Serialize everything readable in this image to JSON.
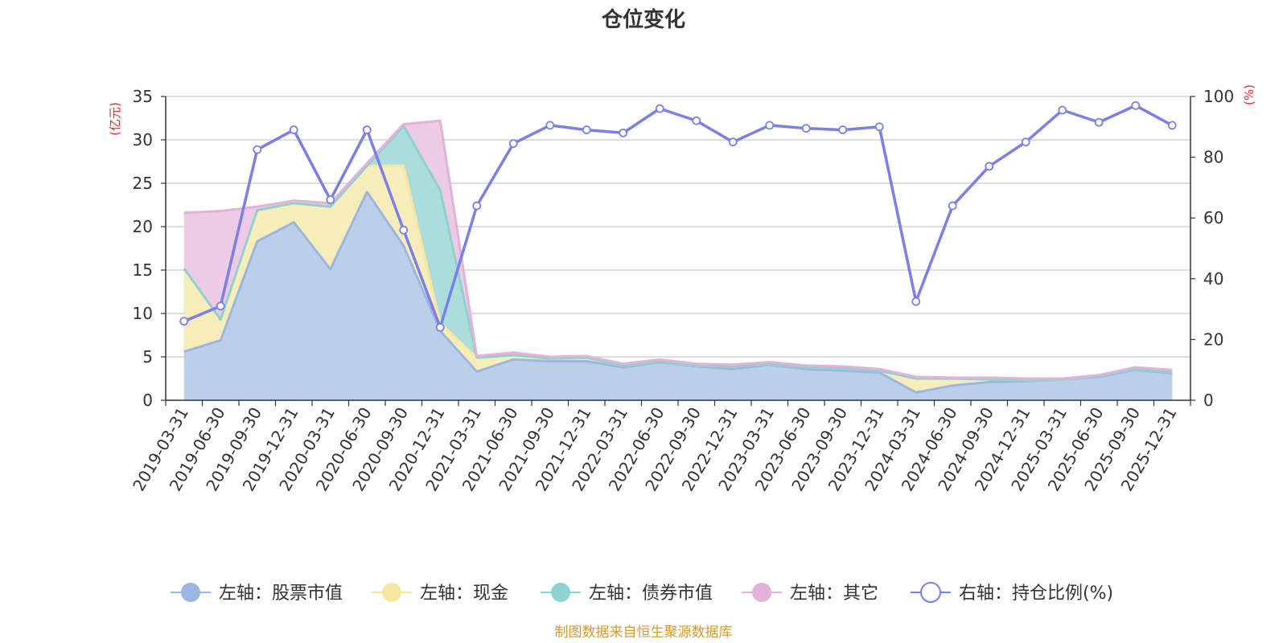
{
  "chart_data": {
    "type": "area",
    "title": "仓位变化",
    "left_unit": "(亿元)",
    "right_unit": "(%)",
    "categories": [
      "2019-03-31",
      "2019-06-30",
      "2019-09-30",
      "2019-12-31",
      "2020-03-31",
      "2020-06-30",
      "2020-09-30",
      "2020-12-31",
      "2021-03-31",
      "2021-06-30",
      "2021-09-30",
      "2021-12-31",
      "2022-03-31",
      "2022-06-30",
      "2022-09-30",
      "2022-12-31",
      "2023-03-31",
      "2023-06-30",
      "2023-09-30",
      "2023-12-31",
      "2024-03-31",
      "2024-06-30",
      "2024-09-30",
      "2024-12-31",
      "2025-03-31",
      "2025-06-30",
      "2025-09-30",
      "2025-12-31"
    ],
    "left_axis": {
      "min": 0,
      "max": 35,
      "ticks": [
        0,
        5,
        10,
        15,
        20,
        25,
        30,
        35
      ]
    },
    "right_axis": {
      "min": 0,
      "max": 100,
      "ticks": [
        0,
        20,
        40,
        60,
        80,
        100
      ]
    },
    "series": [
      {
        "name": "左轴：股票市值",
        "axis": "left",
        "stacked": true,
        "color": "#9bb7e0",
        "fill": "#b8cdea",
        "values": [
          5.6,
          6.9,
          18.3,
          20.5,
          15.1,
          24.0,
          17.8,
          8.0,
          3.3,
          4.7,
          4.5,
          4.5,
          3.8,
          4.4,
          3.9,
          3.6,
          4.1,
          3.6,
          3.4,
          3.2,
          0.9,
          1.7,
          2.1,
          2.2,
          2.4,
          2.7,
          3.5,
          3.1
        ]
      },
      {
        "name": "左轴：现金",
        "axis": "left",
        "stacked": true,
        "color": "#f7e5a2",
        "fill": "#faedb8",
        "values": [
          9.6,
          2.4,
          3.6,
          2.2,
          7.2,
          3.0,
          9.2,
          0.9,
          1.6,
          0.5,
          0.3,
          0.4,
          0.2,
          0.1,
          0.1,
          0.3,
          0.1,
          0.2,
          0.3,
          0.2,
          1.6,
          0.8,
          0.3,
          0.1,
          0.0,
          0.1,
          0.1,
          0.2
        ]
      },
      {
        "name": "左轴：债券市值",
        "axis": "left",
        "stacked": true,
        "color": "#8fd1d0",
        "fill": "#a9dddc",
        "values": [
          0,
          0,
          0,
          0,
          0,
          0,
          4.6,
          15.3,
          0,
          0,
          0,
          0,
          0,
          0,
          0,
          0,
          0,
          0,
          0,
          0,
          0,
          0,
          0,
          0,
          0,
          0,
          0,
          0
        ]
      },
      {
        "name": "左轴：其它",
        "axis": "left",
        "stacked": true,
        "color": "#e3b2d8",
        "fill": "#ecc8e3",
        "values": [
          6.4,
          12.5,
          0.4,
          0.3,
          0.4,
          0.3,
          0.2,
          8.0,
          0.2,
          0.3,
          0.2,
          0.2,
          0.2,
          0.2,
          0.2,
          0.2,
          0.2,
          0.2,
          0.2,
          0.2,
          0.2,
          0.1,
          0.2,
          0.2,
          0.1,
          0.1,
          0.2,
          0.2
        ]
      },
      {
        "name": "右轴：持仓比例(%)",
        "axis": "right",
        "type": "line",
        "color": "#7b7fe8",
        "values": [
          26.0,
          31.0,
          82.5,
          89.0,
          66.0,
          89.0,
          56.0,
          24.0,
          64.0,
          84.5,
          90.5,
          89.0,
          88.0,
          96.0,
          92.0,
          85.0,
          90.5,
          89.5,
          89.0,
          90.0,
          32.5,
          64.0,
          77.0,
          85.0,
          95.5,
          91.5,
          97.0,
          90.5
        ]
      }
    ],
    "legend_position": "bottom",
    "grid": true
  },
  "footer": {
    "source": "制图数据来自恒生聚源数据库"
  }
}
